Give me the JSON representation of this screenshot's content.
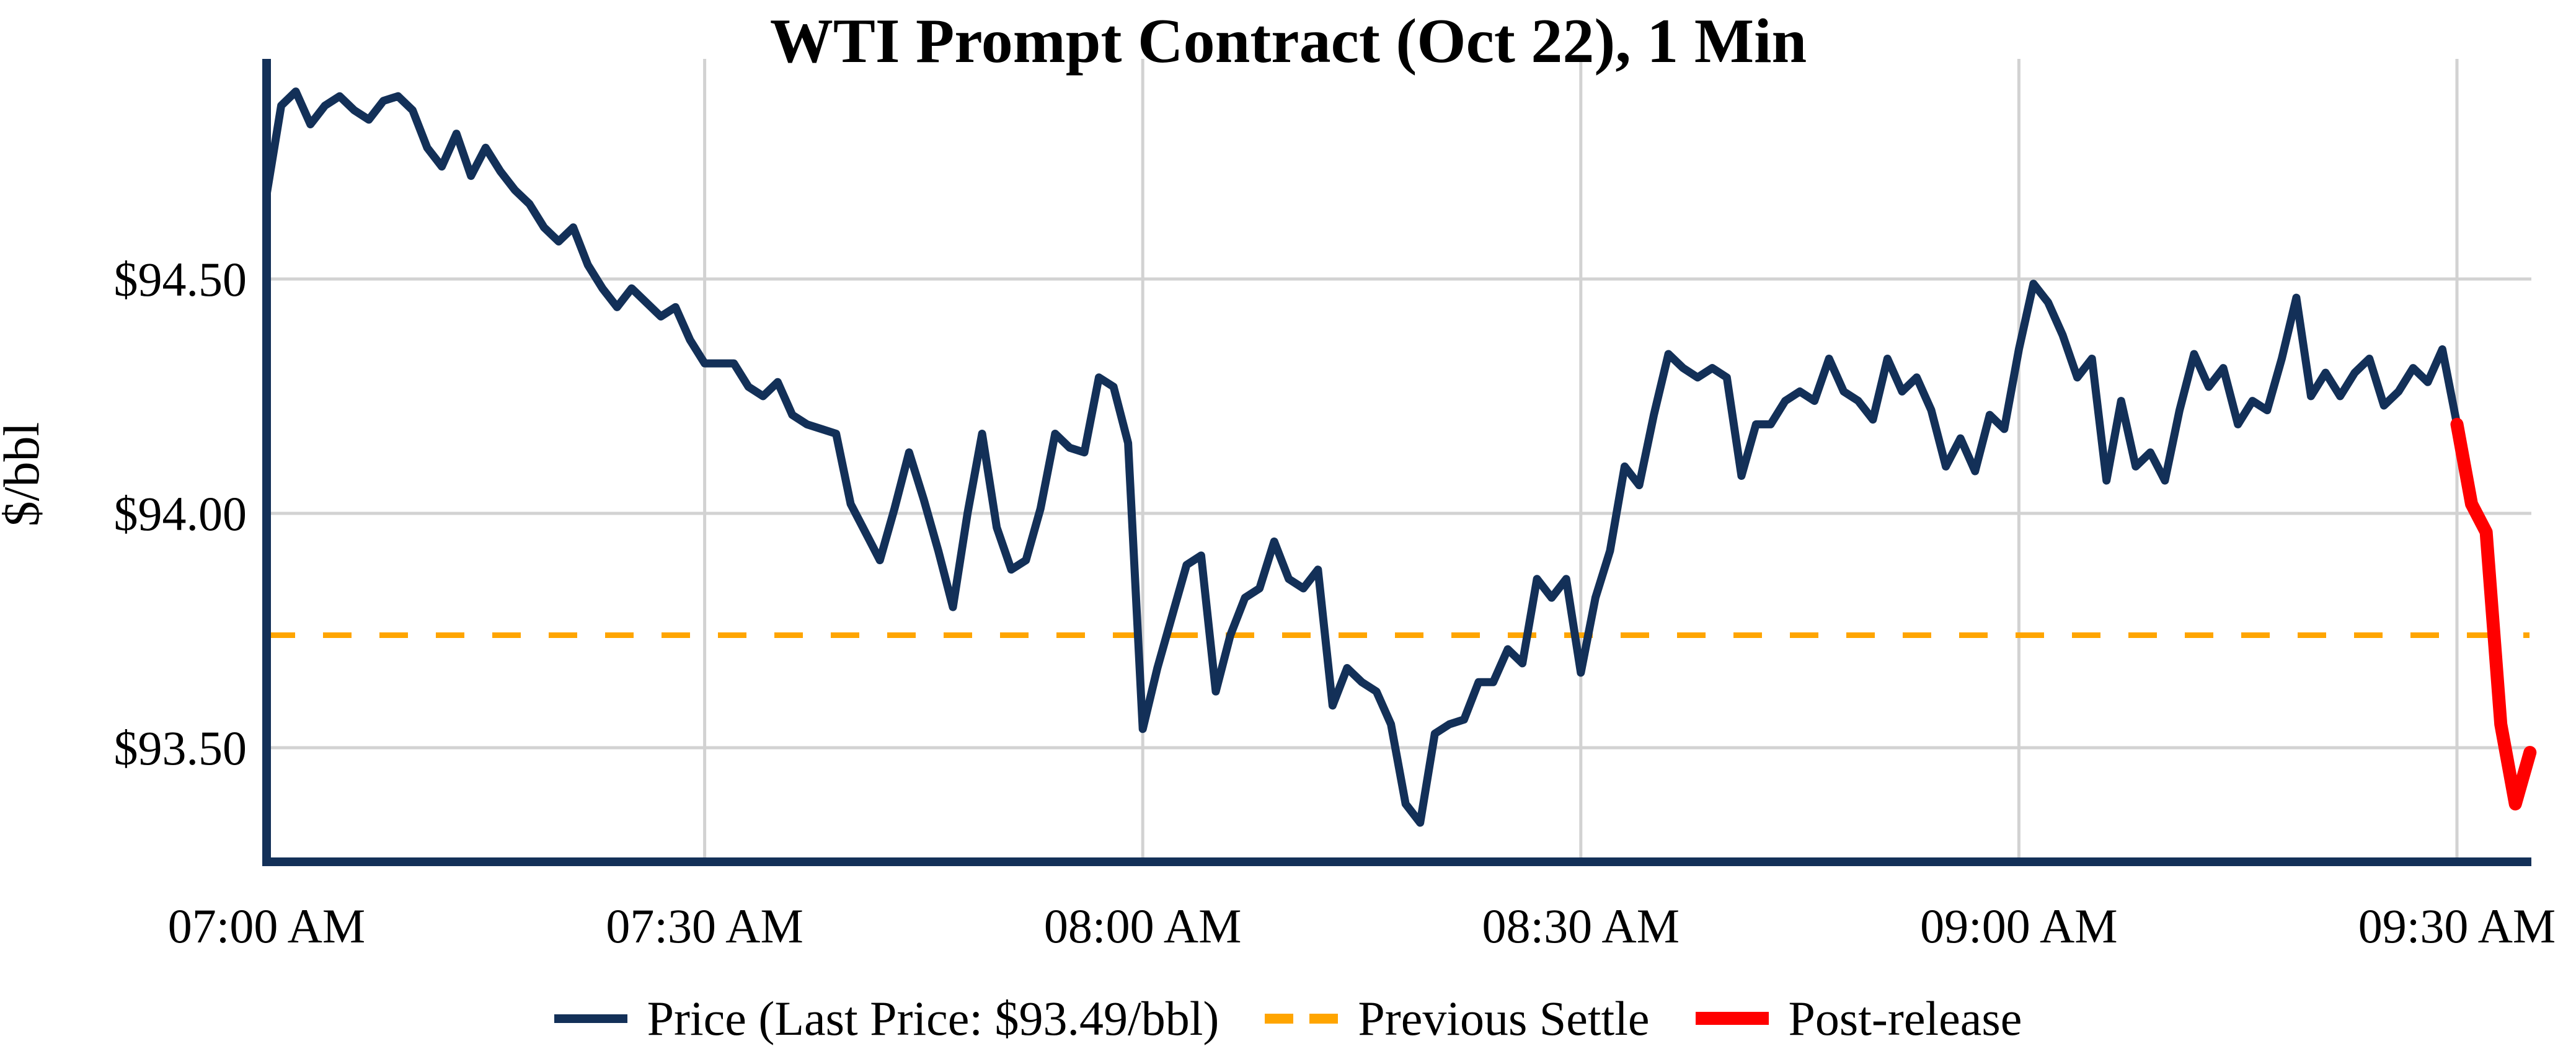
{
  "title": "WTI Prompt Contract (Oct 22), 1 Min",
  "y_axis": {
    "label": "$/bbl",
    "ticks": [
      {
        "value": 94.5,
        "label": "$94.50"
      },
      {
        "value": 94.0,
        "label": "$94.00"
      },
      {
        "value": 93.5,
        "label": "$93.50"
      }
    ]
  },
  "x_axis": {
    "ticks": [
      {
        "minute": 0,
        "label": "07:00 AM"
      },
      {
        "minute": 30,
        "label": "07:30 AM"
      },
      {
        "minute": 60,
        "label": "08:00 AM"
      },
      {
        "minute": 90,
        "label": "08:30 AM"
      },
      {
        "minute": 120,
        "label": "09:00 AM"
      },
      {
        "minute": 150,
        "label": "09:30 AM"
      }
    ]
  },
  "legend": [
    {
      "name": "price",
      "label": "Price (Last Price: $93.49/bbl)",
      "color": "#133058",
      "style": "solid"
    },
    {
      "name": "previous-settle",
      "label": "Previous Settle",
      "color": "#ffa500",
      "style": "dashed"
    },
    {
      "name": "post-release",
      "label": "Post-release",
      "color": "#ff0000",
      "style": "solid-thick"
    }
  ],
  "chart_data": {
    "type": "line",
    "title": "WTI Prompt Contract (Oct 22), 1 Min",
    "xlabel": "",
    "ylabel": "$/bbl",
    "x_start": "07:00 AM",
    "x_interval_minutes": 1,
    "xlim_minutes": [
      0,
      155
    ],
    "ylim": [
      93.26,
      94.96
    ],
    "grid": true,
    "legend_position": "bottom",
    "previous_settle": 93.74,
    "last_price": 93.49,
    "post_release_start_index": 150,
    "prices": [
      94.68,
      94.87,
      94.9,
      94.83,
      94.87,
      94.89,
      94.86,
      94.84,
      94.88,
      94.89,
      94.86,
      94.78,
      94.74,
      94.81,
      94.72,
      94.78,
      94.73,
      94.69,
      94.66,
      94.61,
      94.58,
      94.61,
      94.53,
      94.48,
      94.44,
      94.48,
      94.45,
      94.42,
      94.44,
      94.37,
      94.32,
      94.32,
      94.32,
      94.27,
      94.25,
      94.28,
      94.21,
      94.19,
      94.18,
      94.17,
      94.02,
      93.96,
      93.9,
      94.01,
      94.13,
      94.03,
      93.92,
      93.8,
      94.0,
      94.17,
      93.97,
      93.88,
      93.9,
      94.01,
      94.17,
      94.14,
      94.13,
      94.29,
      94.27,
      94.15,
      93.54,
      93.67,
      93.78,
      93.89,
      93.91,
      93.62,
      93.74,
      93.82,
      93.84,
      93.94,
      93.86,
      93.84,
      93.88,
      93.59,
      93.67,
      93.64,
      93.62,
      93.55,
      93.38,
      93.34,
      93.53,
      93.55,
      93.56,
      93.64,
      93.64,
      93.71,
      93.68,
      93.86,
      93.82,
      93.86,
      93.66,
      93.82,
      93.92,
      94.1,
      94.06,
      94.21,
      94.34,
      94.31,
      94.29,
      94.31,
      94.29,
      94.08,
      94.19,
      94.19,
      94.24,
      94.26,
      94.24,
      94.33,
      94.26,
      94.24,
      94.2,
      94.33,
      94.26,
      94.29,
      94.22,
      94.1,
      94.16,
      94.09,
      94.21,
      94.18,
      94.35,
      94.49,
      94.45,
      94.38,
      94.29,
      94.33,
      94.07,
      94.24,
      94.1,
      94.13,
      94.07,
      94.22,
      94.34,
      94.27,
      94.31,
      94.19,
      94.24,
      94.22,
      94.33,
      94.46,
      94.25,
      94.3,
      94.25,
      94.3,
      94.33,
      94.23,
      94.26,
      94.31,
      94.28,
      94.35,
      94.19,
      94.02,
      93.96,
      93.55,
      93.38,
      93.49
    ],
    "series": [
      {
        "name": "Price",
        "type": "line",
        "color": "#133058",
        "points": "prices[0..150]"
      },
      {
        "name": "Previous Settle",
        "type": "horizontal-line",
        "color": "#ffa500",
        "value": 93.74
      },
      {
        "name": "Post-release",
        "type": "line",
        "color": "#ff0000",
        "points": "prices[150..155]"
      }
    ]
  }
}
